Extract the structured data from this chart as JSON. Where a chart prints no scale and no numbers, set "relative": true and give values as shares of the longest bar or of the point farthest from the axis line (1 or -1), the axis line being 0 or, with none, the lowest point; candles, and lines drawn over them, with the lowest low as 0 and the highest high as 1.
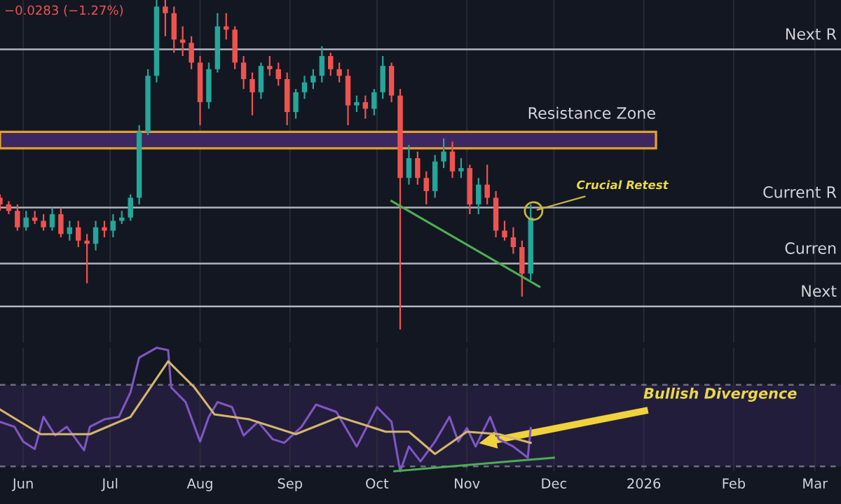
{
  "chart_data": [
    {
      "type": "candlestick",
      "relative": true,
      "subtitle": "−0.0283 (−1.27%)",
      "grid": "x",
      "tick_labels": false,
      "legend": false,
      "xlim": [
        "2025-05-24",
        "2026-03-10"
      ],
      "x": [
        "2025-05-24",
        "2025-05-27",
        "2025-05-30",
        "2025-06-02",
        "2025-06-05",
        "2025-06-08",
        "2025-06-11",
        "2025-06-14",
        "2025-06-17",
        "2025-06-20",
        "2025-06-23",
        "2025-06-26",
        "2025-06-29",
        "2025-07-02",
        "2025-07-05",
        "2025-07-08",
        "2025-07-11",
        "2025-07-14",
        "2025-07-17",
        "2025-07-20",
        "2025-07-23",
        "2025-07-26",
        "2025-07-29",
        "2025-08-01",
        "2025-08-04",
        "2025-08-07",
        "2025-08-10",
        "2025-08-13",
        "2025-08-16",
        "2025-08-19",
        "2025-08-22",
        "2025-08-25",
        "2025-08-28",
        "2025-08-31",
        "2025-09-03",
        "2025-09-06",
        "2025-09-09",
        "2025-09-12",
        "2025-09-15",
        "2025-09-18",
        "2025-09-21",
        "2025-09-24",
        "2025-09-27",
        "2025-09-30",
        "2025-10-03",
        "2025-10-06",
        "2025-10-09",
        "2025-10-12",
        "2025-10-15",
        "2025-10-18",
        "2025-10-21",
        "2025-10-24",
        "2025-10-27",
        "2025-10-30",
        "2025-11-02",
        "2025-11-05",
        "2025-11-08",
        "2025-11-11",
        "2025-11-14",
        "2025-11-17",
        "2025-11-20",
        "2025-11-23"
      ],
      "ohlc": [
        [
          0.4,
          0.41,
          0.36,
          0.38
        ],
        [
          0.38,
          0.39,
          0.35,
          0.36
        ],
        [
          0.36,
          0.38,
          0.3,
          0.31
        ],
        [
          0.31,
          0.36,
          0.3,
          0.34
        ],
        [
          0.34,
          0.36,
          0.32,
          0.33
        ],
        [
          0.33,
          0.35,
          0.3,
          0.31
        ],
        [
          0.31,
          0.37,
          0.3,
          0.35
        ],
        [
          0.35,
          0.37,
          0.28,
          0.29
        ],
        [
          0.29,
          0.33,
          0.27,
          0.31
        ],
        [
          0.31,
          0.33,
          0.25,
          0.27
        ],
        [
          0.27,
          0.29,
          0.14,
          0.26
        ],
        [
          0.26,
          0.33,
          0.24,
          0.31
        ],
        [
          0.31,
          0.33,
          0.28,
          0.3
        ],
        [
          0.3,
          0.35,
          0.28,
          0.33
        ],
        [
          0.33,
          0.36,
          0.32,
          0.34
        ],
        [
          0.34,
          0.41,
          0.33,
          0.4
        ],
        [
          0.4,
          0.62,
          0.38,
          0.6
        ],
        [
          0.6,
          0.79,
          0.59,
          0.77
        ],
        [
          0.77,
          1.0,
          0.75,
          0.98
        ],
        [
          0.98,
          1.0,
          0.89,
          0.96
        ],
        [
          0.96,
          0.98,
          0.84,
          0.88
        ],
        [
          0.88,
          0.92,
          0.83,
          0.87
        ],
        [
          0.87,
          0.89,
          0.79,
          0.81
        ],
        [
          0.81,
          0.83,
          0.62,
          0.69
        ],
        [
          0.69,
          0.81,
          0.67,
          0.79
        ],
        [
          0.79,
          0.96,
          0.78,
          0.92
        ],
        [
          0.92,
          0.96,
          0.88,
          0.91
        ],
        [
          0.91,
          0.92,
          0.79,
          0.81
        ],
        [
          0.81,
          0.83,
          0.73,
          0.76
        ],
        [
          0.76,
          0.78,
          0.65,
          0.72
        ],
        [
          0.72,
          0.81,
          0.7,
          0.8
        ],
        [
          0.8,
          0.83,
          0.77,
          0.79
        ],
        [
          0.79,
          0.81,
          0.74,
          0.76
        ],
        [
          0.76,
          0.78,
          0.62,
          0.66
        ],
        [
          0.66,
          0.73,
          0.64,
          0.72
        ],
        [
          0.72,
          0.77,
          0.7,
          0.75
        ],
        [
          0.75,
          0.79,
          0.73,
          0.77
        ],
        [
          0.77,
          0.86,
          0.75,
          0.83
        ],
        [
          0.83,
          0.84,
          0.77,
          0.79
        ],
        [
          0.79,
          0.81,
          0.75,
          0.77
        ],
        [
          0.77,
          0.79,
          0.62,
          0.68
        ],
        [
          0.68,
          0.71,
          0.66,
          0.69
        ],
        [
          0.69,
          0.71,
          0.64,
          0.67
        ],
        [
          0.67,
          0.73,
          0.65,
          0.72
        ],
        [
          0.72,
          0.83,
          0.7,
          0.8
        ],
        [
          0.8,
          0.81,
          0.69,
          0.71
        ],
        [
          0.71,
          0.73,
          0.0,
          0.46
        ],
        [
          0.46,
          0.56,
          0.44,
          0.52
        ],
        [
          0.52,
          0.54,
          0.44,
          0.46
        ],
        [
          0.46,
          0.48,
          0.38,
          0.42
        ],
        [
          0.42,
          0.53,
          0.4,
          0.51
        ],
        [
          0.51,
          0.58,
          0.49,
          0.54
        ],
        [
          0.54,
          0.57,
          0.46,
          0.48
        ],
        [
          0.48,
          0.52,
          0.46,
          0.49
        ],
        [
          0.49,
          0.5,
          0.35,
          0.38
        ],
        [
          0.38,
          0.46,
          0.35,
          0.44
        ],
        [
          0.44,
          0.5,
          0.38,
          0.4
        ],
        [
          0.4,
          0.42,
          0.28,
          0.3
        ],
        [
          0.3,
          0.33,
          0.27,
          0.28
        ],
        [
          0.28,
          0.31,
          0.23,
          0.25
        ],
        [
          0.25,
          0.27,
          0.1,
          0.17
        ],
        [
          0.17,
          0.38,
          0.15,
          0.34
        ]
      ],
      "series": [
        {
          "type": "line",
          "color": "#4caf50",
          "x": [
            "2025-10-06",
            "2025-11-26"
          ],
          "values": [
            0.39,
            0.13
          ]
        }
      ],
      "ref_lines": [
        {
          "axis": "y",
          "value": 0.85,
          "label": "Next R",
          "color": "#b2b5be"
        },
        {
          "axis": "y",
          "value": 0.37,
          "label": "Current R",
          "color": "#b2b5be"
        },
        {
          "axis": "y",
          "value": 0.2,
          "label": "Curren",
          "color": "#b2b5be"
        },
        {
          "axis": "y",
          "value": 0.07,
          "label": "Next",
          "color": "#b2b5be"
        }
      ],
      "bands": [
        {
          "axis": "y",
          "from": 0.55,
          "to": 0.6,
          "label": "Resistance Zone",
          "color": "#3d2760"
        }
      ],
      "annotations": [
        {
          "text": "Crucial Retest",
          "x": "2025-11-24",
          "y": 0.36
        }
      ]
    },
    {
      "type": "line",
      "relative": true,
      "grid": "x",
      "tick_labels": "x",
      "legend": false,
      "xlim": [
        "2025-05-24",
        "2026-03-10"
      ],
      "xticks": [
        {
          "value": "2025-06-01",
          "label": "Jun"
        },
        {
          "value": "2025-07-01",
          "label": "Jul"
        },
        {
          "value": "2025-08-01",
          "label": "Aug"
        },
        {
          "value": "2025-09-01",
          "label": "Sep"
        },
        {
          "value": "2025-10-01",
          "label": "Oct"
        },
        {
          "value": "2025-11-01",
          "label": "Nov"
        },
        {
          "value": "2025-12-01",
          "label": "Dec"
        },
        {
          "value": "2026-01-01",
          "label": "2026"
        },
        {
          "value": "2026-02-01",
          "label": "Feb"
        },
        {
          "value": "2026-03-01",
          "label": "Mar"
        }
      ],
      "series": [
        {
          "color": "#7e57c2",
          "x": [
            "2025-05-24",
            "2025-05-29",
            "2025-06-01",
            "2025-06-05",
            "2025-06-08",
            "2025-06-12",
            "2025-06-16",
            "2025-06-22",
            "2025-06-24",
            "2025-06-29",
            "2025-07-04",
            "2025-07-08",
            "2025-07-11",
            "2025-07-17",
            "2025-07-21",
            "2025-07-22",
            "2025-07-27",
            "2025-08-01",
            "2025-08-04",
            "2025-08-07",
            "2025-08-12",
            "2025-08-16",
            "2025-08-21",
            "2025-08-26",
            "2025-08-30",
            "2025-09-05",
            "2025-09-10",
            "2025-09-17",
            "2025-09-24",
            "2025-10-01",
            "2025-10-06",
            "2025-10-09",
            "2025-10-12",
            "2025-10-16",
            "2025-10-21",
            "2025-10-26",
            "2025-10-29",
            "2025-11-01",
            "2025-11-04",
            "2025-11-09",
            "2025-11-12",
            "2025-11-17",
            "2025-11-22",
            "2025-11-23"
          ],
          "values": [
            0.4,
            0.36,
            0.24,
            0.18,
            0.44,
            0.29,
            0.36,
            0.17,
            0.36,
            0.42,
            0.44,
            0.64,
            0.92,
            1.0,
            0.98,
            0.68,
            0.56,
            0.24,
            0.44,
            0.56,
            0.52,
            0.29,
            0.4,
            0.26,
            0.23,
            0.36,
            0.54,
            0.48,
            0.2,
            0.52,
            0.4,
            0.0,
            0.2,
            0.08,
            0.24,
            0.44,
            0.24,
            0.35,
            0.2,
            0.44,
            0.26,
            0.2,
            0.11,
            0.35
          ]
        },
        {
          "color": "#d4b86a",
          "x": [
            "2025-05-24",
            "2025-06-07",
            "2025-06-24",
            "2025-07-08",
            "2025-07-21",
            "2025-07-30",
            "2025-08-06",
            "2025-08-18",
            "2025-09-03",
            "2025-09-18",
            "2025-10-04",
            "2025-10-12",
            "2025-10-21",
            "2025-11-01",
            "2025-11-12",
            "2025-11-23"
          ],
          "values": [
            0.5,
            0.3,
            0.3,
            0.44,
            0.89,
            0.68,
            0.46,
            0.42,
            0.3,
            0.44,
            0.32,
            0.32,
            0.14,
            0.32,
            0.3,
            0.23
          ]
        },
        {
          "color": "#4caf50",
          "x": [
            "2025-10-07",
            "2025-12-01"
          ],
          "values": [
            0.0,
            0.11
          ]
        }
      ],
      "ref_lines": [
        {
          "axis": "y",
          "value": 0.7,
          "color": "#6b6f80",
          "line_style": "dashed"
        },
        {
          "axis": "y",
          "value": 0.04,
          "color": "#6b6f80",
          "line_style": "dashed"
        }
      ],
      "bands": [
        {
          "axis": "y",
          "from": 0.04,
          "to": 0.7,
          "color": "#231d3c"
        }
      ],
      "annotations": [
        "Bullish Divergence"
      ]
    }
  ]
}
